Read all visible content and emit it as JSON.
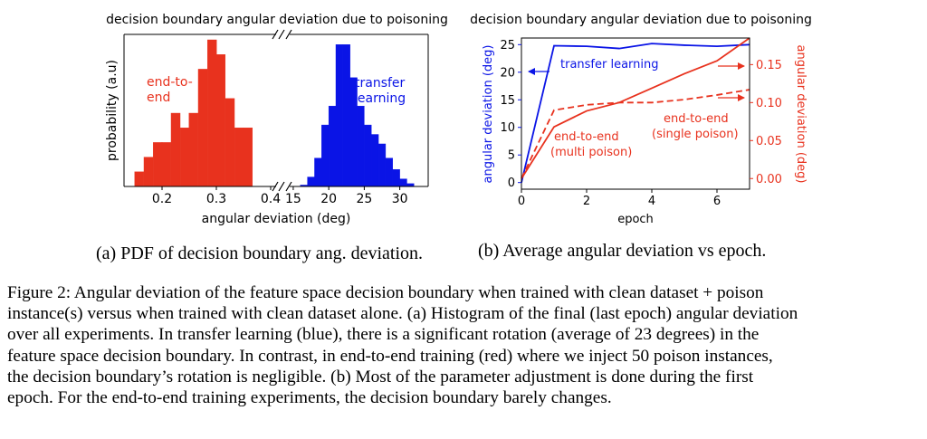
{
  "chart_data": [
    {
      "type": "histogram",
      "title": "decision boundary angular deviation due to poisoning",
      "xlabel": "angular deviation (deg)",
      "ylabel": "probability (a.u)",
      "broken_x_axis": true,
      "panels": [
        {
          "xlim": [
            0.13,
            0.41
          ],
          "ticks": [
            "0.2",
            "0.3",
            "0.4"
          ],
          "tick_values": [
            0.2,
            0.3,
            0.4
          ]
        },
        {
          "xlim": [
            14.5,
            34
          ],
          "ticks": [
            "15",
            "20",
            "25",
            "30"
          ],
          "tick_values": [
            15,
            20,
            25,
            30
          ]
        }
      ],
      "series": [
        {
          "name": "end-to-end",
          "label_lines": [
            "end-to-",
            "end"
          ],
          "color": "#e8321e",
          "bin_width": 0.0167,
          "bins": [
            0.158,
            0.175,
            0.192,
            0.208,
            0.225,
            0.242,
            0.258,
            0.275,
            0.292,
            0.308,
            0.325,
            0.342,
            0.358
          ],
          "values": [
            1,
            2,
            3,
            3,
            5,
            4,
            5,
            8,
            10,
            9,
            6,
            4,
            4
          ]
        },
        {
          "name": "transfer learning",
          "label_lines": [
            "transfer",
            "learning"
          ],
          "color": "#0a14e6",
          "bin_width": 1.0,
          "bins": [
            16.5,
            17.5,
            18.5,
            19.5,
            20.5,
            21.5,
            22.5,
            23.5,
            24.5,
            25.5,
            26.5,
            27.5,
            28.5,
            29.5,
            30.5,
            31.5
          ],
          "values": [
            0.15,
            1,
            3,
            6.5,
            8.5,
            15,
            15,
            11.5,
            8.5,
            6.5,
            5.5,
            4.5,
            3,
            1.8,
            0.8,
            0.3
          ],
          "ymax": 15.5
        }
      ]
    },
    {
      "type": "line",
      "title": "decision boundary angular deviation due to poisoning",
      "xlabel": "epoch",
      "ylabel_left": "angular deviation (deg)",
      "ylabel_right": "angular deviation (deg)",
      "xlim": [
        0,
        7
      ],
      "xticks": [
        0,
        2,
        4,
        6
      ],
      "ylim_left": [
        -1.2,
        26.2
      ],
      "yticks_left": [
        0,
        5,
        10,
        15,
        20,
        25
      ],
      "ylim_right": [
        -0.014,
        0.185
      ],
      "yticks_right": [
        "0.00",
        "0.05",
        "0.10",
        "0.15"
      ],
      "ytick_right_values": [
        0.0,
        0.05,
        0.1,
        0.15
      ],
      "series": [
        {
          "name": "transfer learning",
          "axis": "left",
          "color": "#0a14e6",
          "style": "solid",
          "x": [
            0,
            1,
            2,
            3,
            4,
            5,
            6,
            7
          ],
          "y": [
            0,
            24.8,
            24.7,
            24.3,
            25.2,
            24.9,
            24.7,
            25.0
          ]
        },
        {
          "name": "end-to-end (multi poison)",
          "label_lines": [
            "end-to-end",
            "(multi poison)"
          ],
          "axis": "right",
          "color": "#e8321e",
          "style": "solid",
          "x": [
            0,
            1,
            2,
            3,
            4,
            5,
            6,
            7
          ],
          "y": [
            0.0,
            0.068,
            0.089,
            0.1,
            0.119,
            0.138,
            0.155,
            0.185
          ]
        },
        {
          "name": "end-to-end (single poison)",
          "label_lines": [
            "end-to-end",
            "(single poison)"
          ],
          "axis": "right",
          "color": "#e8321e",
          "style": "dashed",
          "x": [
            0,
            1,
            2,
            3,
            4,
            5,
            6,
            7
          ],
          "y": [
            0.0,
            0.09,
            0.097,
            0.1,
            0.1,
            0.104,
            0.11,
            0.117
          ]
        }
      ],
      "annotations": [
        "left arrow toward left axis (transfer learning)",
        "right arrows toward right axis (end-to-end)"
      ]
    }
  ],
  "subcaptions": {
    "a": "(a) PDF of decision boundary ang. deviation.",
    "b": "(b) Average angular deviation vs epoch."
  },
  "caption": {
    "lines": [
      "Figure 2: Angular deviation of the feature space decision boundary when trained with clean dataset + poison",
      "instance(s) versus when trained with clean dataset alone. (a) Histogram of the final (last epoch) angular deviation",
      "over all experiments. In transfer learning (blue), there is a significant rotation (average of 23 degrees) in the",
      "feature space decision boundary. In contrast, in end-to-end training (red) where we inject 50 poison instances,",
      "the decision boundary’s rotation is negligible. (b) Most of the parameter adjustment is done during the first",
      "epoch. For the end-to-end training experiments, the decision boundary barely changes."
    ]
  }
}
